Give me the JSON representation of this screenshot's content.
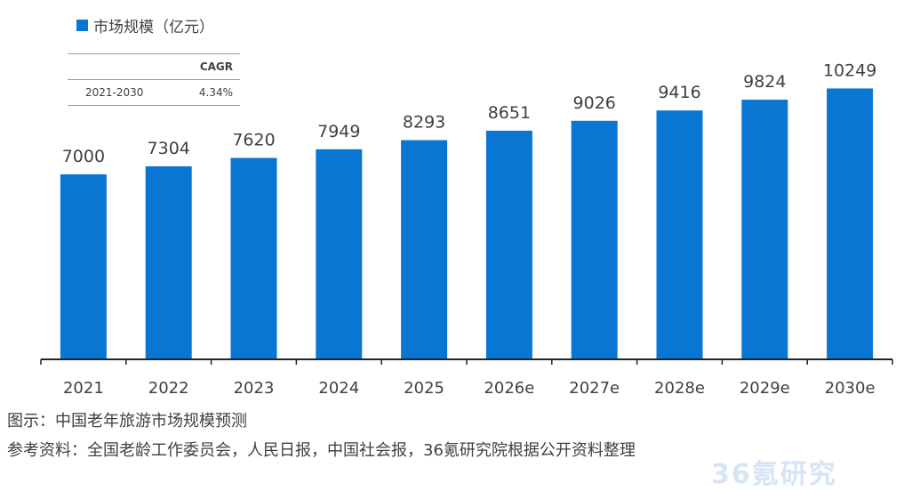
{
  "chart_data": {
    "type": "bar",
    "categories": [
      "2021",
      "2022",
      "2023",
      "2024",
      "2025",
      "2026e",
      "2027e",
      "2028e",
      "2029e",
      "2030e"
    ],
    "values": [
      7000,
      7304,
      7620,
      7949,
      8293,
      8651,
      9026,
      9416,
      9824,
      10249
    ],
    "series_name": "市场规模（亿元）",
    "bar_color": "#0a76d4",
    "ylim": [
      0,
      11000
    ],
    "grid": false,
    "legend_position": "top-left"
  },
  "cagr_table": {
    "header": {
      "period": "",
      "value": "CAGR"
    },
    "rows": [
      {
        "period": "2021-2030",
        "value": "4.34%"
      }
    ]
  },
  "caption": "图示：中国老年旅游市场规模预测",
  "source": "参考资料：全国老龄工作委员会，人民日报，中国社会报，36氪研究院根据公开资料整理",
  "watermark": "36氪研究"
}
